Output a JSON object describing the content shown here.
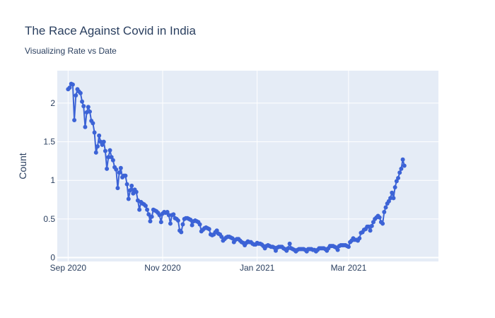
{
  "chart_data": {
    "type": "line",
    "title": "The Race Against Covid in India",
    "subtitle": "Visualizing Rate vs Date",
    "xlabel": "",
    "ylabel": "Count",
    "xlim": [
      "2020-08-25",
      "2021-04-28"
    ],
    "ylim": [
      -0.05,
      2.42
    ],
    "grid": true,
    "legend": "none",
    "colors": {
      "line": "#3c63d6",
      "plot_bg": "#e5ecf6",
      "grid": "#ffffff",
      "text": "#2a3f5f"
    },
    "x_ticks": [
      {
        "date": "2020-09-01",
        "label": "Sep 2020"
      },
      {
        "date": "2020-11-01",
        "label": "Nov 2020"
      },
      {
        "date": "2021-01-01",
        "label": "Jan 2021"
      },
      {
        "date": "2021-03-01",
        "label": "Mar 2021"
      }
    ],
    "y_ticks": [
      {
        "value": 0,
        "label": "0"
      },
      {
        "value": 0.5,
        "label": "0.5"
      },
      {
        "value": 1,
        "label": "1"
      },
      {
        "value": 1.5,
        "label": "1.5"
      },
      {
        "value": 2,
        "label": "2"
      }
    ],
    "series": [
      {
        "start_date": "2020-09-01",
        "step_days": 1,
        "values": [
          2.18,
          2.2,
          2.25,
          2.24,
          1.78,
          2.1,
          2.18,
          2.15,
          2.13,
          2.02,
          1.96,
          1.69,
          1.88,
          1.95,
          1.89,
          1.77,
          1.74,
          1.62,
          1.36,
          1.44,
          1.58,
          1.5,
          1.46,
          1.5,
          1.38,
          1.15,
          1.3,
          1.39,
          1.3,
          1.26,
          1.17,
          1.14,
          0.9,
          1.1,
          1.16,
          1.04,
          1.06,
          1.06,
          0.95,
          0.76,
          0.87,
          0.93,
          0.83,
          0.88,
          0.85,
          0.74,
          0.62,
          0.72,
          0.7,
          0.69,
          0.67,
          0.62,
          0.56,
          0.47,
          0.53,
          0.62,
          0.61,
          0.6,
          0.58,
          0.55,
          0.46,
          0.57,
          0.59,
          0.58,
          0.59,
          0.55,
          0.44,
          0.55,
          0.56,
          0.51,
          0.5,
          0.48,
          0.35,
          0.33,
          0.43,
          0.5,
          0.51,
          0.51,
          0.5,
          0.49,
          0.42,
          0.47,
          0.48,
          0.47,
          0.46,
          0.43,
          0.34,
          0.36,
          0.38,
          0.39,
          0.38,
          0.37,
          0.3,
          0.29,
          0.3,
          0.33,
          0.35,
          0.31,
          0.3,
          0.27,
          0.22,
          0.24,
          0.26,
          0.27,
          0.27,
          0.26,
          0.25,
          0.2,
          0.23,
          0.24,
          0.24,
          0.22,
          0.2,
          0.19,
          0.16,
          0.19,
          0.21,
          0.2,
          0.2,
          0.18,
          0.17,
          0.17,
          0.19,
          0.18,
          0.18,
          0.17,
          0.15,
          0.12,
          0.15,
          0.16,
          0.15,
          0.14,
          0.14,
          0.13,
          0.09,
          0.13,
          0.14,
          0.14,
          0.14,
          0.12,
          0.11,
          0.09,
          0.12,
          0.18,
          0.12,
          0.11,
          0.1,
          0.08,
          0.1,
          0.11,
          0.11,
          0.11,
          0.11,
          0.1,
          0.08,
          0.11,
          0.11,
          0.11,
          0.1,
          0.1,
          0.08,
          0.1,
          0.12,
          0.12,
          0.12,
          0.12,
          0.11,
          0.09,
          0.12,
          0.15,
          0.15,
          0.15,
          0.14,
          0.13,
          0.1,
          0.15,
          0.16,
          0.16,
          0.16,
          0.16,
          0.15,
          0.14,
          0.2,
          0.22,
          0.25,
          0.23,
          0.23,
          0.22,
          0.25,
          0.32,
          0.33,
          0.36,
          0.37,
          0.4,
          0.4,
          0.35,
          0.41,
          0.46,
          0.5,
          0.52,
          0.54,
          0.52,
          0.46,
          0.44,
          0.59,
          0.65,
          0.7,
          0.73,
          0.77,
          0.84,
          0.77,
          0.91,
          0.99,
          1.03,
          1.1,
          1.15,
          1.27,
          1.19
        ]
      }
    ]
  }
}
